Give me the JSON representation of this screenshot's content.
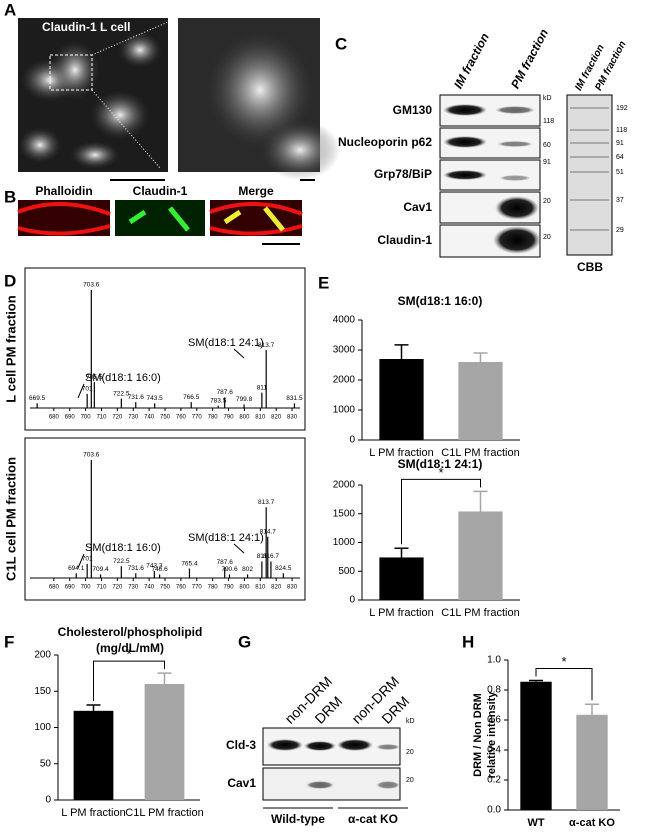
{
  "panel_labels": [
    "A",
    "B",
    "C",
    "D",
    "E",
    "F",
    "G",
    "H"
  ],
  "panel_a": {
    "title": "Claudin-1 L cell"
  },
  "panel_b": {
    "channels": [
      "Phalloidin",
      "Claudin-1",
      "Merge"
    ]
  },
  "panel_c": {
    "fractions": [
      "IM fraction",
      "PM fraction"
    ],
    "rows": [
      "GM130",
      "Nucleoporin p62",
      "Grp78/BiP",
      "Cav1",
      "Claudin-1"
    ],
    "kd_unit": "kD",
    "row_markers": [
      118,
      60,
      91,
      20,
      20
    ],
    "cbb_markers": [
      192,
      118,
      91,
      64,
      51,
      37,
      29
    ],
    "cbb_label": "CBB"
  },
  "panel_g": {
    "lanes": [
      "non-DRM",
      "DRM",
      "non-DRM",
      "DRM"
    ],
    "rows": [
      "Cld-3",
      "Cav1"
    ],
    "kd_unit": "kD",
    "markers": [
      20,
      20
    ],
    "groups": [
      "Wild-type",
      "α-cat KO"
    ]
  },
  "chart_data": [
    {
      "type": "spectrum",
      "y_label": "L cell PM fraction",
      "x": [
        669.5,
        701,
        703.6,
        705.5,
        722.5,
        731.6,
        743.5,
        766.5,
        783.5,
        787.6,
        799.8,
        811,
        813.7,
        831.5
      ],
      "values": [
        4,
        12,
        100,
        22,
        8,
        5,
        4,
        5,
        2,
        9,
        3,
        13,
        49,
        4
      ],
      "xlim": [
        665,
        835
      ],
      "ylim": [
        0,
        100
      ],
      "xticks": [
        680,
        690,
        700,
        710,
        720,
        730,
        740,
        750,
        760,
        770,
        780,
        790,
        800,
        810,
        820,
        830
      ],
      "annotations": [
        "SM(d18:1 16:0)",
        "SM(d18:1 24:1)"
      ]
    },
    {
      "type": "spectrum",
      "y_label": "C1L cell PM fraction",
      "x": [
        694.1,
        701,
        703.6,
        709.4,
        722.5,
        731.6,
        743.3,
        746.6,
        765.4,
        787.6,
        790.6,
        802,
        811,
        813.7,
        814.7,
        816.7,
        824.5
      ],
      "values": [
        4,
        12,
        100,
        3,
        10,
        4,
        6,
        3,
        8,
        9,
        3,
        3,
        14,
        60,
        35,
        14,
        4
      ],
      "xlim": [
        665,
        835
      ],
      "ylim": [
        0,
        100
      ],
      "xticks": [
        680,
        690,
        700,
        710,
        720,
        730,
        740,
        750,
        760,
        770,
        780,
        790,
        800,
        810,
        820,
        830
      ],
      "annotations": [
        "SM(d18:1 16:0)",
        "SM(d18:1 24:1)"
      ]
    },
    {
      "type": "bar",
      "title": "SM(d18:1 16:0)",
      "categories": [
        "L PM fraction",
        "C1L PM fraction"
      ],
      "values": [
        2700,
        2600
      ],
      "errors": [
        470,
        300
      ],
      "colors": [
        "#000000",
        "#a6a6a6"
      ],
      "ylim": [
        0,
        4000
      ],
      "yticks": [
        0,
        1000,
        2000,
        3000,
        4000
      ]
    },
    {
      "type": "bar",
      "title": "SM(d18:1 24:1)",
      "categories": [
        "L PM fraction",
        "C1L PM fraction"
      ],
      "values": [
        740,
        1540
      ],
      "errors": [
        160,
        350
      ],
      "colors": [
        "#000000",
        "#a6a6a6"
      ],
      "ylim": [
        0,
        2000
      ],
      "yticks": [
        0,
        500,
        1000,
        1500,
        2000
      ],
      "significance": "*"
    },
    {
      "type": "bar",
      "title": "Cholesterol/phospholipid",
      "subtitle": "(mg/dL/mM)",
      "categories": [
        "L PM fraction",
        "C1L PM fraction"
      ],
      "values": [
        123,
        160
      ],
      "errors": [
        8,
        15
      ],
      "colors": [
        "#000000",
        "#a6a6a6"
      ],
      "ylim": [
        0,
        200
      ],
      "yticks": [
        0,
        50,
        100,
        150,
        200
      ],
      "significance": "*"
    },
    {
      "type": "bar",
      "y_label": [
        "DRM / Non DRM",
        "relative intensity"
      ],
      "categories": [
        "WT",
        "α-cat KO"
      ],
      "values": [
        0.855,
        0.635
      ],
      "errors": [
        0.008,
        0.07
      ],
      "colors": [
        "#000000",
        "#a6a6a6"
      ],
      "ylim": [
        0,
        1
      ],
      "yticks": [
        {
          "value": 0,
          "label": "0.0"
        },
        0.2,
        0.4,
        0.6,
        0.8,
        {
          "value": 1,
          "label": "1.0"
        }
      ],
      "significance": "*"
    }
  ]
}
